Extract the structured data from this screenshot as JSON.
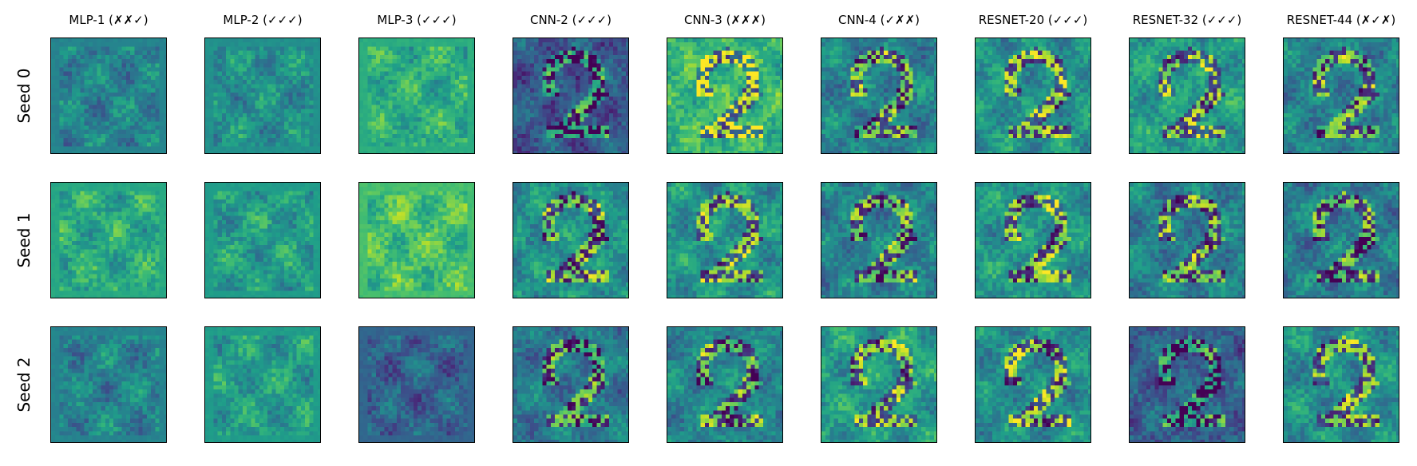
{
  "figure": {
    "columns": [
      {
        "title": "MLP-1 (✗✗✓)"
      },
      {
        "title": "MLP-2 (✓✓✓)"
      },
      {
        "title": "MLP-3 (✓✓✓)"
      },
      {
        "title": "CNN-2 (✓✓✓)"
      },
      {
        "title": "CNN-3 (✗✗✗)"
      },
      {
        "title": "CNN-4 (✓✗✗)"
      },
      {
        "title": "RESNET-20 (✓✓✓)"
      },
      {
        "title": "RESNET-32 (✓✓✓)"
      },
      {
        "title": "RESNET-44 (✗✓✗)"
      }
    ],
    "rows": [
      {
        "label": "Seed 0"
      },
      {
        "label": "Seed 1"
      },
      {
        "label": "Seed 2"
      }
    ],
    "colormap": "viridis",
    "panel_background": [
      "#3b528b",
      "#26828e",
      "#35b779",
      "#fde725",
      "#440154"
    ]
  }
}
